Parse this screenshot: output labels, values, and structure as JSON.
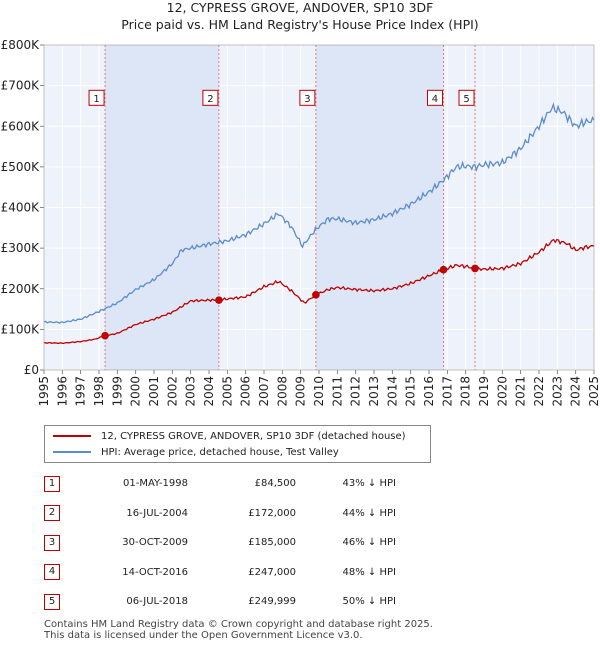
{
  "title_line1": "12, CYPRESS GROVE, ANDOVER, SP10 3DF",
  "title_line2": "Price paid vs. HM Land Registry's House Price Index (HPI)",
  "chart_data": {
    "type": "line",
    "x_range": [
      1995,
      2025
    ],
    "ylim": [
      0,
      800000
    ],
    "y_ticks": [
      {
        "value": 0,
        "label": "£0"
      },
      {
        "value": 100000,
        "label": "£100K"
      },
      {
        "value": 200000,
        "label": "£200K"
      },
      {
        "value": 300000,
        "label": "£300K"
      },
      {
        "value": 400000,
        "label": "£400K"
      },
      {
        "value": 500000,
        "label": "£500K"
      },
      {
        "value": 600000,
        "label": "£600K"
      },
      {
        "value": 700000,
        "label": "£700K"
      },
      {
        "value": 800000,
        "label": "£800K"
      }
    ],
    "x_ticks": [
      "1995",
      "1996",
      "1997",
      "1998",
      "1999",
      "2000",
      "2001",
      "2002",
      "2003",
      "2004",
      "2005",
      "2006",
      "2007",
      "2008",
      "2009",
      "2010",
      "2011",
      "2012",
      "2013",
      "2014",
      "2015",
      "2016",
      "2017",
      "2018",
      "2019",
      "2020",
      "2021",
      "2022",
      "2023",
      "2024",
      "2025"
    ],
    "series": [
      {
        "name": "12, CYPRESS GROVE, ANDOVER, SP10 3DF (detached house)",
        "color": "#c00000",
        "points": [
          [
            1995,
            67000
          ],
          [
            1996,
            66000
          ],
          [
            1997,
            70000
          ],
          [
            1997.8,
            76000
          ],
          [
            1998.33,
            84500
          ],
          [
            1999,
            90000
          ],
          [
            2000,
            112000
          ],
          [
            2001,
            125000
          ],
          [
            2002,
            142000
          ],
          [
            2003,
            170000
          ],
          [
            2004,
            172000
          ],
          [
            2004.54,
            172000
          ],
          [
            2005,
            175000
          ],
          [
            2006,
            180000
          ],
          [
            2007,
            205000
          ],
          [
            2007.8,
            218000
          ],
          [
            2008.5,
            195000
          ],
          [
            2009.2,
            165000
          ],
          [
            2009.83,
            185000
          ],
          [
            2010.5,
            198000
          ],
          [
            2011,
            203000
          ],
          [
            2012,
            198000
          ],
          [
            2013,
            195000
          ],
          [
            2014,
            200000
          ],
          [
            2015,
            213000
          ],
          [
            2016,
            232000
          ],
          [
            2016.79,
            247000
          ],
          [
            2017.5,
            258000
          ],
          [
            2018.0,
            255000
          ],
          [
            2018.51,
            249999
          ],
          [
            2019,
            248000
          ],
          [
            2020,
            250000
          ],
          [
            2021,
            262000
          ],
          [
            2022,
            290000
          ],
          [
            2022.8,
            320000
          ],
          [
            2023.5,
            312000
          ],
          [
            2024,
            295000
          ],
          [
            2024.5,
            302000
          ],
          [
            2025,
            305000
          ]
        ]
      },
      {
        "name": "HPI: Average price, detached house, Test Valley",
        "color": "#5b8ccc",
        "points": [
          [
            1995,
            118000
          ],
          [
            1996,
            117000
          ],
          [
            1997,
            125000
          ],
          [
            1998,
            144000
          ],
          [
            1999,
            165000
          ],
          [
            2000,
            198000
          ],
          [
            2001,
            222000
          ],
          [
            2002,
            262000
          ],
          [
            2002.5,
            295000
          ],
          [
            2003,
            300000
          ],
          [
            2004,
            310000
          ],
          [
            2005,
            318000
          ],
          [
            2006,
            333000
          ],
          [
            2007,
            360000
          ],
          [
            2007.8,
            385000
          ],
          [
            2008.5,
            352000
          ],
          [
            2009.1,
            305000
          ],
          [
            2009.8,
            345000
          ],
          [
            2010.5,
            372000
          ],
          [
            2011,
            372000
          ],
          [
            2012,
            362000
          ],
          [
            2013,
            370000
          ],
          [
            2014,
            385000
          ],
          [
            2015,
            408000
          ],
          [
            2016,
            438000
          ],
          [
            2016.8,
            468000
          ],
          [
            2017.5,
            500000
          ],
          [
            2018,
            502000
          ],
          [
            2018.5,
            500000
          ],
          [
            2019,
            505000
          ],
          [
            2020,
            510000
          ],
          [
            2021,
            545000
          ],
          [
            2022,
            600000
          ],
          [
            2022.7,
            645000
          ],
          [
            2023.3,
            635000
          ],
          [
            2024,
            600000
          ],
          [
            2024.5,
            610000
          ],
          [
            2025,
            615000
          ]
        ]
      }
    ],
    "sales": [
      {
        "id": "1",
        "x": 1998.33,
        "price": 84500
      },
      {
        "id": "2",
        "x": 2004.54,
        "price": 172000
      },
      {
        "id": "3",
        "x": 2009.83,
        "price": 185000
      },
      {
        "id": "4",
        "x": 2016.79,
        "price": 247000
      },
      {
        "id": "5",
        "x": 2018.51,
        "price": 249999
      }
    ],
    "label_y_value": 670000
  },
  "legend": {
    "price_label": "12, CYPRESS GROVE, ANDOVER, SP10 3DF (detached house)",
    "hpi_label": "HPI: Average price, detached house, Test Valley"
  },
  "transactions": [
    {
      "num": "1",
      "date": "01-MAY-1998",
      "price": "£84,500",
      "hpi": "43% ↓ HPI"
    },
    {
      "num": "2",
      "date": "16-JUL-2004",
      "price": "£172,000",
      "hpi": "44% ↓ HPI"
    },
    {
      "num": "3",
      "date": "30-OCT-2009",
      "price": "£185,000",
      "hpi": "46% ↓ HPI"
    },
    {
      "num": "4",
      "date": "14-OCT-2016",
      "price": "£247,000",
      "hpi": "48% ↓ HPI"
    },
    {
      "num": "5",
      "date": "06-JUL-2018",
      "price": "£249,999",
      "hpi": "50% ↓ HPI"
    }
  ],
  "footer": {
    "line1": "Contains HM Land Registry data © Crown copyright and database right 2025.",
    "line2": "This data is licensed under the Open Government Licence v3.0."
  }
}
